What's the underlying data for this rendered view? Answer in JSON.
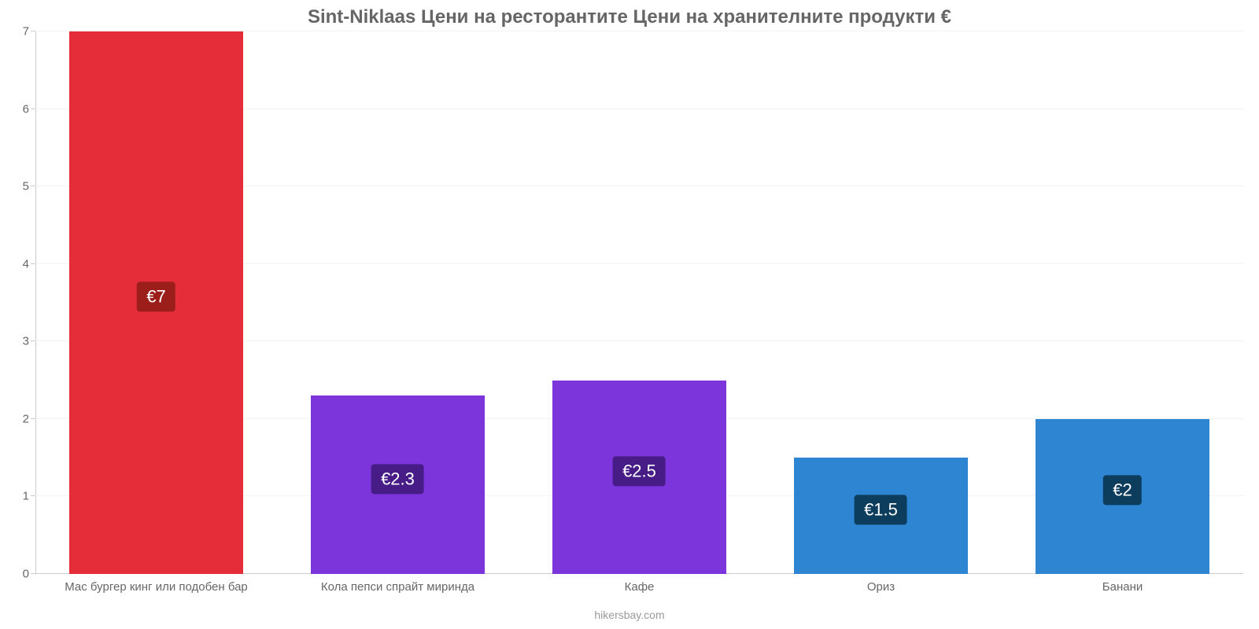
{
  "chart": {
    "type": "bar",
    "title": "Sint-Niklaas Цени на ресторантите Цени на хранителните продукти €",
    "title_fontsize": 24,
    "title_color": "#666666",
    "background_color": "#ffffff",
    "grid_color": "#f3f3f3",
    "axis_color": "#cccccc",
    "tick_color": "#666666",
    "tick_fontsize": 15,
    "ylim": [
      0,
      7
    ],
    "yticks": [
      0,
      1,
      2,
      3,
      4,
      5,
      6,
      7
    ],
    "bar_width_ratio": 0.72,
    "categories": [
      "Мас бургер кинг или подобен бар",
      "Кола пепси спрайт миринда",
      "Кафе",
      "Ориз",
      "Банани"
    ],
    "values": [
      7,
      2.3,
      2.5,
      1.5,
      2
    ],
    "value_labels": [
      "€7",
      "€2.3",
      "€2.5",
      "€1.5",
      "€2"
    ],
    "bar_colors": [
      "#e52d39",
      "#7b35da",
      "#7b35da",
      "#2e86d2",
      "#2e86d2"
    ],
    "badge_colors": [
      "#9c1e1a",
      "#471c86",
      "#471c86",
      "#0d3d5c",
      "#0d3d5c"
    ],
    "badge_text_color": "#ffffff",
    "badge_fontsize": 22,
    "xlabel_fontsize": 15,
    "xlabel_color": "#666666",
    "footer": "hikersbay.com",
    "footer_color": "#999999",
    "footer_fontsize": 14
  }
}
